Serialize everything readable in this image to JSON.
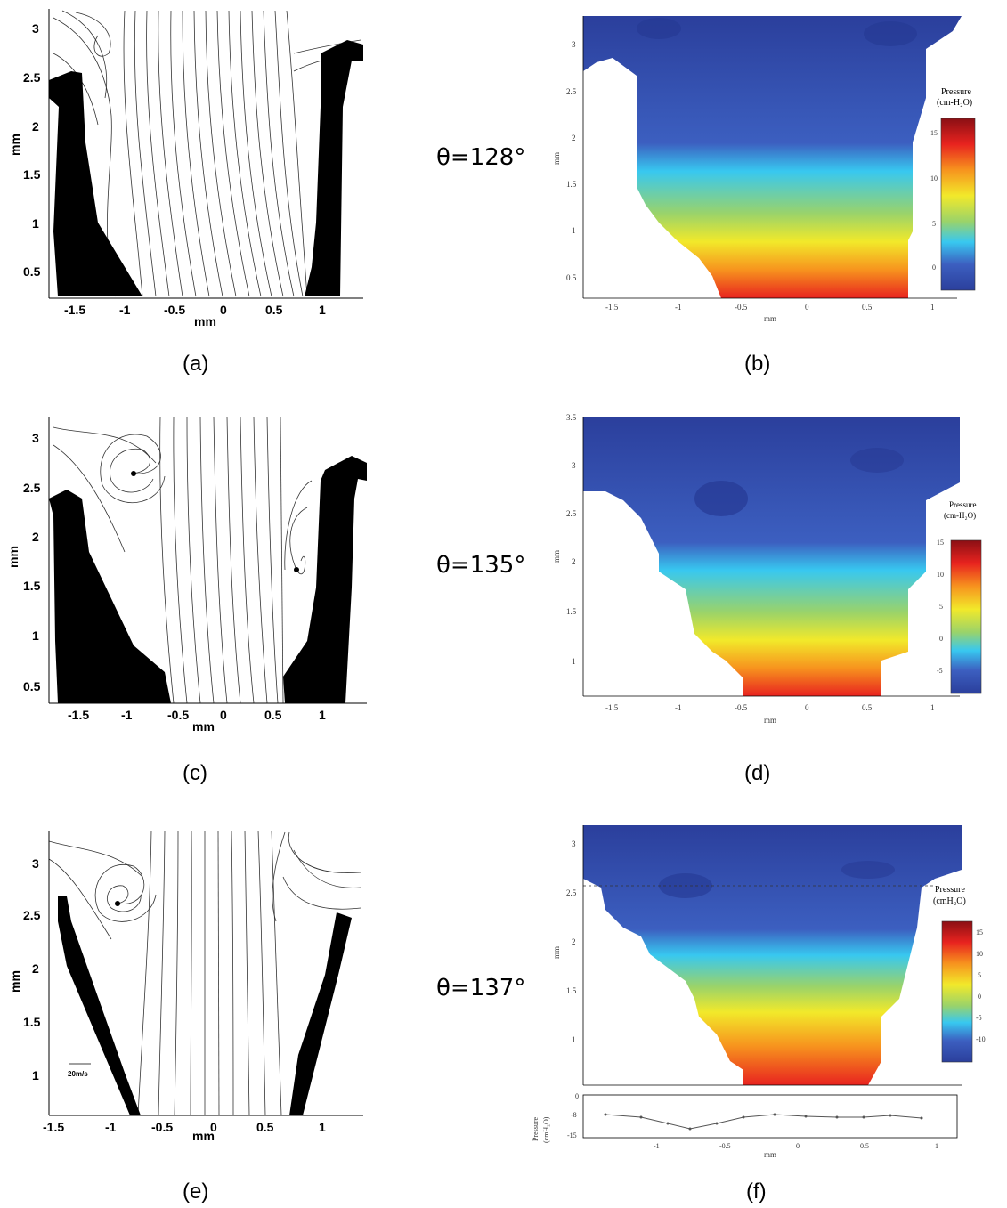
{
  "figure": {
    "rows": [
      {
        "angle": "θ=128°",
        "left": {
          "label": "(a)",
          "xlabel": "mm",
          "ylabel": "mm",
          "xticks": [
            "-1.5",
            "-1",
            "-0.5",
            "0",
            "0.5",
            "1"
          ],
          "yticks": [
            "3",
            "2.5",
            "2",
            "1.5",
            "1",
            "0.5"
          ]
        },
        "right": {
          "label": "(b)",
          "xlabel": "mm",
          "ylabel": "mm",
          "xticks": [
            "-1.5",
            "-1",
            "-0.5",
            "0",
            "0.5",
            "1"
          ],
          "yticks": [
            "3",
            "2.5",
            "2",
            "1.5",
            "1",
            "0.5"
          ],
          "colorbar_title_1": "Pressure",
          "colorbar_title_2": "(cm-H₂O)",
          "colorbar_ticks": [
            "15",
            "10",
            "5",
            "0"
          ]
        }
      },
      {
        "angle": "θ=135°",
        "left": {
          "label": "(c)",
          "xlabel": "mm",
          "ylabel": "mm",
          "xticks": [
            "-1.5",
            "-1",
            "-0.5",
            "0",
            "0.5",
            "1"
          ],
          "yticks": [
            "3",
            "2.5",
            "2",
            "1.5",
            "1",
            "0.5"
          ]
        },
        "right": {
          "label": "(d)",
          "xlabel": "mm",
          "ylabel": "mm",
          "xticks": [
            "-1.5",
            "-1",
            "-0.5",
            "0",
            "0.5",
            "1"
          ],
          "yticks": [
            "3.5",
            "3",
            "2.5",
            "2",
            "1.5",
            "1"
          ],
          "colorbar_title_1": "Pressure",
          "colorbar_title_2": "(cm-H₂O)",
          "colorbar_ticks": [
            "15",
            "10",
            "5",
            "0",
            "-5"
          ]
        }
      },
      {
        "angle": "θ=137°",
        "left": {
          "label": "(e)",
          "xlabel": "mm",
          "ylabel": "mm",
          "xticks": [
            "-1.5",
            "-1",
            "-0.5",
            "0",
            "0.5",
            "1"
          ],
          "yticks": [
            "3",
            "2.5",
            "2",
            "1.5",
            "1"
          ],
          "scale_label": "20m/s"
        },
        "right": {
          "label": "(f)",
          "xlabel": "mm",
          "ylabel": "mm",
          "xticks": [
            "-1.5",
            "-1",
            "-0.5",
            "0",
            "0.5",
            "1"
          ],
          "yticks": [
            "3",
            "2.5",
            "2",
            "1.5",
            "1"
          ],
          "colorbar_title_1": "Pressure",
          "colorbar_title_2": "(cmH₂O)",
          "colorbar_ticks": [
            "15",
            "10",
            "5",
            "0",
            "-5",
            "-10"
          ],
          "subplot_ylabel_1": "Pressure",
          "subplot_ylabel_2": "(cmH₂O)",
          "subplot_yticks": [
            "0",
            "-8",
            "-15"
          ],
          "subplot_xticks": [
            "-1",
            "-0.5",
            "0",
            "0.5",
            "1"
          ],
          "subplot_xlabel": "mm"
        }
      }
    ]
  },
  "colors": {
    "blue_dark": "#2b3f9c",
    "blue": "#3c5fc0",
    "cyan": "#38c8f0",
    "green": "#9ad36a",
    "yellow": "#f2e92a",
    "orange": "#f7931e",
    "red": "#e8231f",
    "dark_red": "#8b0f14"
  }
}
